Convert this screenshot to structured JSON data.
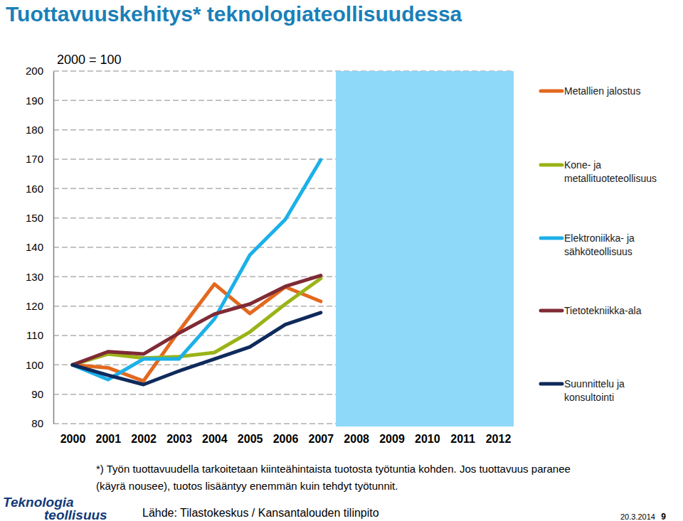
{
  "chart_data": {
    "type": "line",
    "title": "Tuottavuuskehitys* teknologiateollisuudessa",
    "subtitle": "2000 = 100",
    "categories": [
      "2000",
      "2001",
      "2002",
      "2003",
      "2004",
      "2005",
      "2006",
      "2007",
      "2008",
      "2009",
      "2010",
      "2011",
      "2012"
    ],
    "series": [
      {
        "name": "Metallien jalostus",
        "color": "#e2691f",
        "values": [
          100,
          99,
          94.5,
          111.5,
          127.5,
          117.5,
          126.5,
          121.6,
          null,
          null,
          null,
          null,
          null
        ]
      },
      {
        "name": "Kone- ja metallituoteteollisuus",
        "color": "#9bb317",
        "values": [
          100,
          103.7,
          102.3,
          102.8,
          104.2,
          111.2,
          120.7,
          129.4,
          null,
          null,
          null,
          null,
          null
        ]
      },
      {
        "name": "Elektroniikka- ja sähköteollisuus",
        "color": "#1cb0e8",
        "values": [
          100,
          95,
          102,
          102,
          115.6,
          137.4,
          149.5,
          169.8,
          null,
          null,
          null,
          null,
          null
        ]
      },
      {
        "name": "Tietotekniikka-ala",
        "color": "#7f2a35",
        "values": [
          100,
          104.5,
          103.7,
          110.8,
          117.3,
          120.7,
          126.7,
          130.4,
          null,
          null,
          null,
          null,
          null
        ]
      },
      {
        "name": "Suunnittelu ja konsultointi",
        "color": "#0f2a5c",
        "values": [
          100,
          96.5,
          93.3,
          97.9,
          102,
          106.1,
          113.7,
          117.8,
          null,
          null,
          null,
          null,
          null
        ]
      }
    ],
    "ylim": [
      80,
      200
    ],
    "yticks": [
      80,
      90,
      100,
      110,
      120,
      130,
      140,
      150,
      160,
      170,
      180,
      190,
      200
    ],
    "grid": true,
    "legend": "right",
    "annotations": [
      "*) Työn tuottavuudella tarkoitetaan kiinteähintaista tuotosta työtuntia kohden. Jos tuottavuus paranee",
      "(käyrä nousee), tuotos lisääntyy enemmän kuin tehdyt työtunnit.",
      "Lähde: Tilastokeskus / Kansantalouden tilinpito",
      "Teknologia",
      "teollisuus",
      "20.3.2014",
      "9"
    ]
  }
}
